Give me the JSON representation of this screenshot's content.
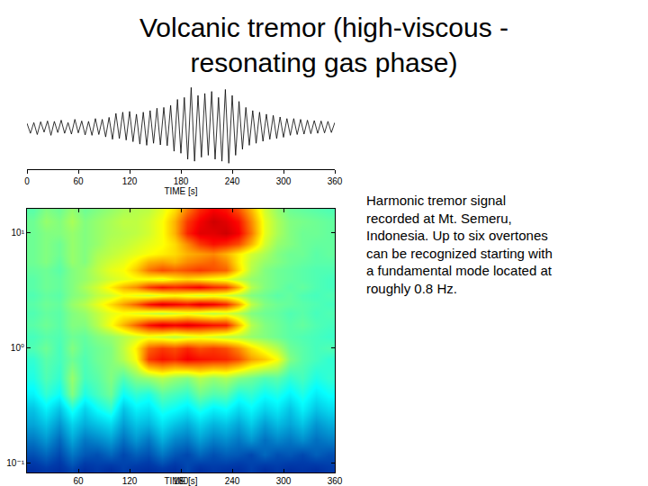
{
  "title": [
    "Volcanic tremor (high-viscous -",
    "resonating gas phase)"
  ],
  "caption": [
    "Harmonic tremor signal",
    "recorded at Mt. Semeru,",
    "Indonesia. Up to six overtones",
    "can be recognized starting with",
    "a fundamental mode located at",
    "roughly 0.8 Hz."
  ],
  "chart_data": [
    {
      "type": "line",
      "xlabel": "TIME [s]",
      "color": "#000000",
      "grid": false,
      "tick_labels": "x",
      "x": [
        0,
        4,
        8,
        12,
        16,
        20,
        24,
        28,
        32,
        36,
        40,
        44,
        48,
        52,
        56,
        60,
        64,
        68,
        72,
        76,
        80,
        84,
        88,
        92,
        96,
        100,
        104,
        108,
        112,
        116,
        120,
        124,
        128,
        132,
        136,
        140,
        144,
        148,
        152,
        156,
        160,
        164,
        168,
        172,
        176,
        180,
        184,
        188,
        192,
        196,
        200,
        204,
        208,
        212,
        216,
        220,
        224,
        228,
        232,
        236,
        240,
        244,
        248,
        252,
        256,
        260,
        264,
        268,
        272,
        276,
        280,
        284,
        288,
        292,
        296,
        300,
        304,
        308,
        312,
        316,
        320,
        324,
        328,
        332,
        336,
        340,
        344,
        348,
        352,
        356,
        360
      ],
      "values": [
        0.1,
        -0.15,
        0.12,
        -0.18,
        0.14,
        -0.12,
        0.16,
        -0.2,
        0.15,
        -0.13,
        0.18,
        -0.15,
        0.12,
        -0.17,
        0.2,
        -0.14,
        0.16,
        -0.19,
        0.15,
        -0.2,
        0.22,
        -0.18,
        0.2,
        -0.24,
        0.25,
        -0.3,
        0.35,
        -0.28,
        0.38,
        -0.32,
        0.4,
        -0.36,
        0.33,
        -0.42,
        0.38,
        -0.45,
        0.42,
        -0.4,
        0.48,
        -0.44,
        0.5,
        -0.46,
        0.55,
        -0.6,
        0.7,
        -0.65,
        0.75,
        -0.8,
        1.0,
        -0.85,
        0.8,
        -0.75,
        0.85,
        -0.7,
        0.9,
        -0.8,
        0.75,
        -0.85,
        0.95,
        -0.9,
        0.8,
        -0.7,
        0.65,
        -0.55,
        0.5,
        -0.45,
        0.42,
        -0.4,
        0.38,
        -0.35,
        0.33,
        -0.3,
        0.3,
        -0.28,
        0.26,
        -0.25,
        0.22,
        -0.2,
        0.22,
        -0.18,
        0.2,
        -0.17,
        0.18,
        -0.16,
        0.17,
        -0.15,
        0.16,
        -0.14,
        0.15,
        -0.13,
        0.12
      ],
      "xlim": [
        0,
        360
      ],
      "xticks": [
        0,
        60,
        120,
        180,
        240,
        300,
        360
      ],
      "ylim": [
        -1.05,
        1.05
      ]
    },
    {
      "type": "heatmap",
      "xlabel": "TIME [s]",
      "log": "y",
      "grid": false,
      "x": [
        7.5,
        22.5,
        37.5,
        52.5,
        67.5,
        82.5,
        97.5,
        112.5,
        127.5,
        142.5,
        157.5,
        172.5,
        187.5,
        202.5,
        217.5,
        232.5,
        247.5,
        262.5,
        277.5,
        292.5,
        307.5,
        322.5,
        337.5,
        352.5
      ],
      "y": [
        0.09,
        0.12,
        0.16,
        0.22,
        0.3,
        0.4,
        0.55,
        0.8,
        1.0,
        1.25,
        1.6,
        2.0,
        2.4,
        2.9,
        3.4,
        4.0,
        4.8,
        5.6,
        6.6,
        8,
        10,
        12.5,
        15.5
      ],
      "z": [
        [
          0.1,
          0.12,
          0.1,
          0.14,
          0.1,
          0.12,
          0.1,
          0.13,
          0.11,
          0.1,
          0.12,
          0.1,
          0.14,
          0.1,
          0.12,
          0.11,
          0.1,
          0.13,
          0.1,
          0.12,
          0.1,
          0.11,
          0.1,
          0.12
        ],
        [
          0.15,
          0.18,
          0.14,
          0.2,
          0.16,
          0.15,
          0.18,
          0.14,
          0.17,
          0.15,
          0.2,
          0.16,
          0.14,
          0.18,
          0.15,
          0.17,
          0.16,
          0.14,
          0.18,
          0.15,
          0.16,
          0.14,
          0.17,
          0.15
        ],
        [
          0.2,
          0.24,
          0.18,
          0.26,
          0.2,
          0.22,
          0.25,
          0.19,
          0.24,
          0.2,
          0.27,
          0.22,
          0.2,
          0.25,
          0.21,
          0.23,
          0.2,
          0.24,
          0.19,
          0.22,
          0.2,
          0.23,
          0.19,
          0.21
        ],
        [
          0.26,
          0.3,
          0.24,
          0.32,
          0.27,
          0.3,
          0.33,
          0.25,
          0.3,
          0.28,
          0.34,
          0.3,
          0.27,
          0.32,
          0.28,
          0.3,
          0.26,
          0.31,
          0.25,
          0.29,
          0.26,
          0.3,
          0.24,
          0.27
        ],
        [
          0.3,
          0.36,
          0.3,
          0.4,
          0.32,
          0.38,
          0.42,
          0.3,
          0.36,
          0.34,
          0.4,
          0.38,
          0.35,
          0.4,
          0.36,
          0.38,
          0.33,
          0.37,
          0.32,
          0.35,
          0.3,
          0.36,
          0.3,
          0.33
        ],
        [
          0.36,
          0.42,
          0.38,
          0.5,
          0.4,
          0.44,
          0.48,
          0.38,
          0.42,
          0.4,
          0.46,
          0.44,
          0.42,
          0.48,
          0.45,
          0.46,
          0.4,
          0.42,
          0.38,
          0.4,
          0.36,
          0.4,
          0.35,
          0.38
        ],
        [
          0.4,
          0.45,
          0.42,
          0.52,
          0.44,
          0.46,
          0.5,
          0.45,
          0.5,
          0.52,
          0.55,
          0.52,
          0.5,
          0.55,
          0.52,
          0.54,
          0.5,
          0.48,
          0.45,
          0.46,
          0.42,
          0.44,
          0.4,
          0.42
        ],
        [
          0.42,
          0.46,
          0.44,
          0.48,
          0.45,
          0.48,
          0.5,
          0.55,
          0.62,
          0.82,
          0.86,
          0.84,
          0.88,
          0.86,
          0.85,
          0.84,
          0.8,
          0.72,
          0.68,
          0.62,
          0.5,
          0.46,
          0.44,
          0.42
        ],
        [
          0.45,
          0.48,
          0.44,
          0.5,
          0.46,
          0.48,
          0.5,
          0.56,
          0.64,
          0.78,
          0.82,
          0.8,
          0.84,
          0.8,
          0.82,
          0.8,
          0.74,
          0.66,
          0.6,
          0.55,
          0.48,
          0.46,
          0.44,
          0.45
        ],
        [
          0.44,
          0.46,
          0.45,
          0.48,
          0.47,
          0.5,
          0.52,
          0.55,
          0.58,
          0.6,
          0.58,
          0.56,
          0.58,
          0.6,
          0.58,
          0.56,
          0.55,
          0.52,
          0.5,
          0.48,
          0.46,
          0.45,
          0.44,
          0.43
        ],
        [
          0.46,
          0.48,
          0.46,
          0.5,
          0.5,
          0.55,
          0.62,
          0.7,
          0.78,
          0.86,
          0.9,
          0.88,
          0.9,
          0.88,
          0.86,
          0.85,
          0.7,
          0.55,
          0.5,
          0.48,
          0.46,
          0.47,
          0.45,
          0.44
        ],
        [
          0.45,
          0.47,
          0.46,
          0.5,
          0.52,
          0.56,
          0.6,
          0.62,
          0.6,
          0.58,
          0.56,
          0.58,
          0.6,
          0.58,
          0.56,
          0.58,
          0.55,
          0.5,
          0.48,
          0.47,
          0.45,
          0.46,
          0.44,
          0.45
        ],
        [
          0.46,
          0.48,
          0.47,
          0.52,
          0.55,
          0.6,
          0.66,
          0.72,
          0.78,
          0.86,
          0.9,
          0.88,
          0.86,
          0.9,
          0.88,
          0.84,
          0.72,
          0.56,
          0.5,
          0.48,
          0.47,
          0.46,
          0.45,
          0.44
        ],
        [
          0.45,
          0.47,
          0.46,
          0.5,
          0.52,
          0.56,
          0.58,
          0.62,
          0.6,
          0.58,
          0.6,
          0.62,
          0.6,
          0.58,
          0.6,
          0.58,
          0.55,
          0.5,
          0.48,
          0.46,
          0.47,
          0.45,
          0.44,
          0.45
        ],
        [
          0.46,
          0.48,
          0.47,
          0.5,
          0.54,
          0.58,
          0.64,
          0.7,
          0.74,
          0.82,
          0.86,
          0.84,
          0.86,
          0.88,
          0.84,
          0.82,
          0.7,
          0.55,
          0.5,
          0.48,
          0.46,
          0.47,
          0.45,
          0.44
        ],
        [
          0.46,
          0.48,
          0.47,
          0.5,
          0.52,
          0.55,
          0.58,
          0.6,
          0.62,
          0.62,
          0.6,
          0.64,
          0.66,
          0.64,
          0.62,
          0.6,
          0.56,
          0.52,
          0.5,
          0.48,
          0.47,
          0.46,
          0.45,
          0.44
        ],
        [
          0.47,
          0.48,
          0.46,
          0.5,
          0.52,
          0.56,
          0.6,
          0.62,
          0.68,
          0.76,
          0.8,
          0.78,
          0.8,
          0.82,
          0.8,
          0.78,
          0.66,
          0.55,
          0.5,
          0.48,
          0.47,
          0.46,
          0.45,
          0.45
        ],
        [
          0.48,
          0.5,
          0.47,
          0.52,
          0.5,
          0.55,
          0.58,
          0.6,
          0.64,
          0.7,
          0.72,
          0.7,
          0.74,
          0.76,
          0.78,
          0.74,
          0.64,
          0.56,
          0.52,
          0.5,
          0.48,
          0.47,
          0.46,
          0.46
        ],
        [
          0.48,
          0.5,
          0.48,
          0.52,
          0.5,
          0.54,
          0.56,
          0.58,
          0.6,
          0.62,
          0.64,
          0.66,
          0.7,
          0.72,
          0.74,
          0.7,
          0.64,
          0.58,
          0.54,
          0.5,
          0.48,
          0.48,
          0.46,
          0.47
        ],
        [
          0.48,
          0.5,
          0.48,
          0.52,
          0.5,
          0.52,
          0.55,
          0.56,
          0.58,
          0.6,
          0.62,
          0.66,
          0.74,
          0.82,
          0.86,
          0.84,
          0.8,
          0.7,
          0.58,
          0.52,
          0.5,
          0.48,
          0.47,
          0.47
        ],
        [
          0.48,
          0.5,
          0.5,
          0.52,
          0.5,
          0.52,
          0.54,
          0.55,
          0.56,
          0.58,
          0.62,
          0.7,
          0.84,
          0.9,
          0.9,
          0.92,
          0.88,
          0.76,
          0.6,
          0.54,
          0.5,
          0.48,
          0.48,
          0.47
        ],
        [
          0.48,
          0.52,
          0.5,
          0.54,
          0.5,
          0.52,
          0.54,
          0.56,
          0.56,
          0.58,
          0.62,
          0.7,
          0.82,
          0.88,
          0.92,
          0.9,
          0.86,
          0.74,
          0.6,
          0.54,
          0.5,
          0.49,
          0.48,
          0.47
        ],
        [
          0.46,
          0.5,
          0.48,
          0.52,
          0.48,
          0.5,
          0.52,
          0.54,
          0.55,
          0.56,
          0.6,
          0.66,
          0.76,
          0.84,
          0.88,
          0.86,
          0.8,
          0.7,
          0.58,
          0.52,
          0.48,
          0.47,
          0.46,
          0.45
        ]
      ],
      "zlim": [
        0,
        1
      ],
      "xlim": [
        0,
        360
      ],
      "xticks": [
        60,
        120,
        180,
        240,
        300,
        360
      ],
      "ylim": [
        0.083,
        16.2
      ],
      "yticks": [
        {
          "value": 0.1,
          "label": "10⁻¹"
        },
        {
          "value": 1,
          "label": "10⁰"
        },
        {
          "value": 10,
          "label": "10¹"
        }
      ]
    }
  ]
}
